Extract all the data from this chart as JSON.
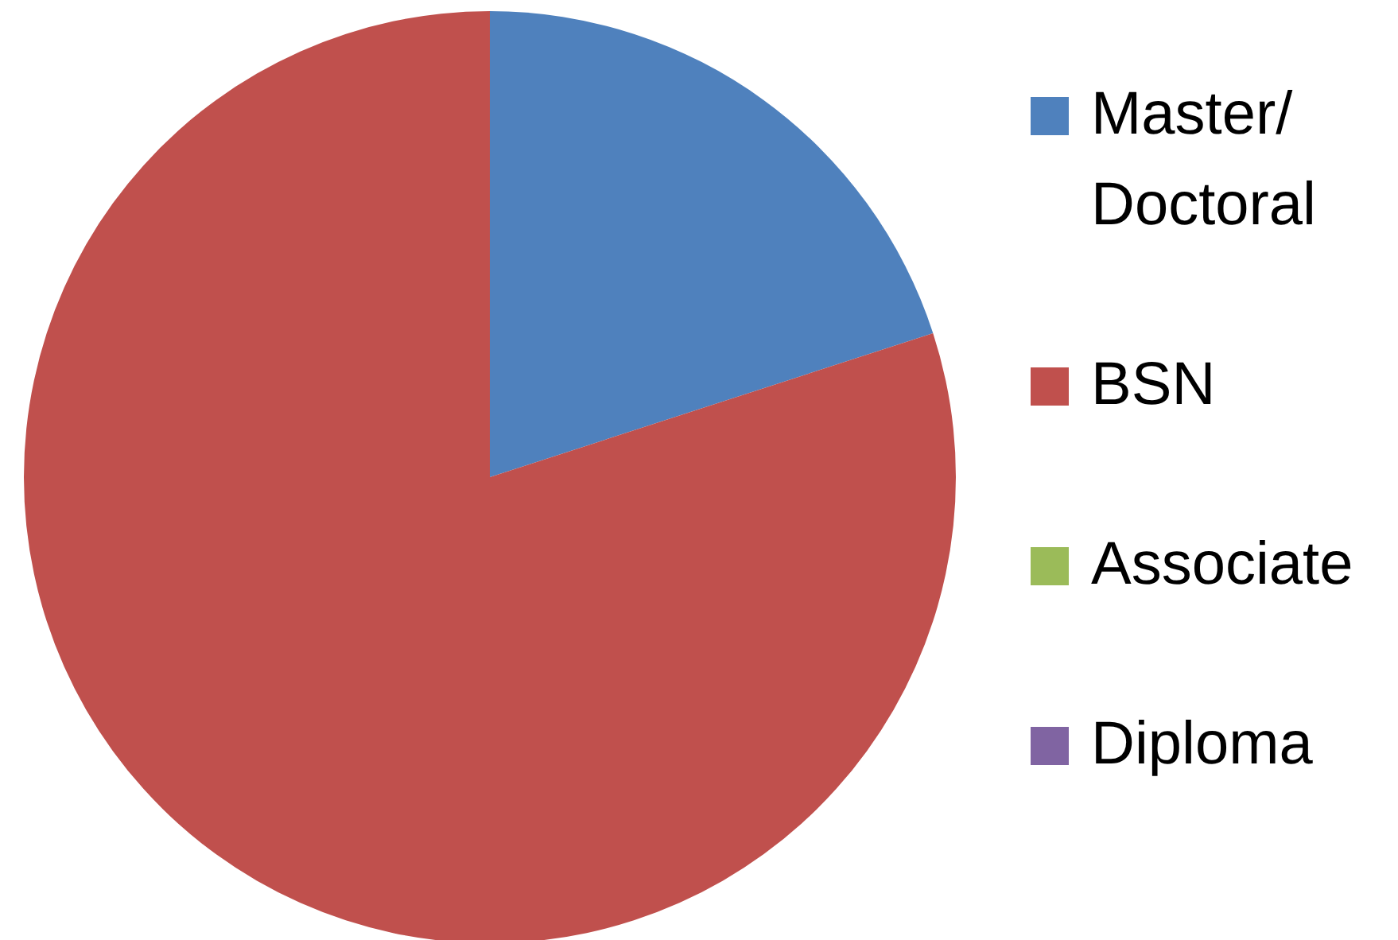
{
  "chart_data": {
    "type": "pie",
    "categories": [
      "Master/ Doctoral",
      "BSN",
      "Associate",
      "Diploma"
    ],
    "values": [
      20,
      80,
      0,
      0
    ],
    "colors": [
      "#4f81bd",
      "#c0504d",
      "#9bbb59",
      "#8064a2"
    ],
    "legend": "right"
  }
}
